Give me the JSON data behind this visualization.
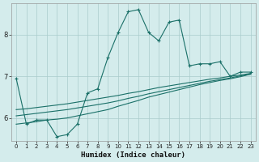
{
  "xlabel": "Humidex (Indice chaleur)",
  "bg_color": "#d4ecec",
  "grid_color": "#aacccc",
  "line_color": "#1a7068",
  "xlim": [
    -0.5,
    23.5
  ],
  "ylim": [
    5.45,
    8.75
  ],
  "yticks": [
    6,
    7,
    8
  ],
  "xticks": [
    0,
    1,
    2,
    3,
    4,
    5,
    6,
    7,
    8,
    9,
    10,
    11,
    12,
    13,
    14,
    15,
    16,
    17,
    18,
    19,
    20,
    21,
    22,
    23
  ],
  "main_x": [
    0,
    1,
    2,
    3,
    4,
    5,
    6,
    7,
    8,
    9,
    10,
    11,
    12,
    13,
    14,
    15,
    16,
    17,
    18,
    19,
    20,
    21,
    22,
    23
  ],
  "main_y": [
    6.95,
    5.85,
    5.95,
    5.95,
    5.55,
    5.6,
    5.85,
    6.6,
    6.7,
    7.45,
    8.05,
    8.55,
    8.6,
    8.05,
    7.85,
    8.3,
    8.35,
    7.25,
    7.3,
    7.3,
    7.35,
    7.0,
    7.1,
    7.1
  ],
  "line_sets": [
    {
      "x": [
        0,
        1,
        2,
        3,
        4,
        5,
        6,
        7,
        8,
        9,
        10,
        11,
        12,
        13,
        14,
        15,
        16,
        17,
        18,
        19,
        20,
        21,
        22,
        23
      ],
      "y": [
        5.85,
        5.88,
        5.91,
        5.95,
        5.97,
        6.0,
        6.05,
        6.1,
        6.15,
        6.2,
        6.28,
        6.35,
        6.42,
        6.5,
        6.56,
        6.62,
        6.68,
        6.74,
        6.8,
        6.85,
        6.9,
        6.94,
        6.99,
        7.05
      ]
    },
    {
      "x": [
        0,
        1,
        2,
        3,
        4,
        5,
        6,
        7,
        8,
        9,
        10,
        11,
        12,
        13,
        14,
        15,
        16,
        17,
        18,
        19,
        20,
        21,
        22,
        23
      ],
      "y": [
        6.05,
        6.08,
        6.11,
        6.14,
        6.17,
        6.2,
        6.24,
        6.28,
        6.32,
        6.36,
        6.41,
        6.47,
        6.52,
        6.58,
        6.63,
        6.68,
        6.73,
        6.78,
        6.83,
        6.88,
        6.92,
        6.96,
        7.01,
        7.05
      ]
    },
    {
      "x": [
        0,
        1,
        2,
        3,
        4,
        5,
        6,
        7,
        8,
        9,
        10,
        11,
        12,
        13,
        14,
        15,
        16,
        17,
        18,
        19,
        20,
        21,
        22,
        23
      ],
      "y": [
        6.2,
        6.22,
        6.25,
        6.28,
        6.31,
        6.34,
        6.38,
        6.42,
        6.46,
        6.5,
        6.54,
        6.59,
        6.63,
        6.68,
        6.73,
        6.77,
        6.81,
        6.85,
        6.89,
        6.93,
        6.96,
        7.0,
        7.03,
        7.07
      ]
    }
  ]
}
